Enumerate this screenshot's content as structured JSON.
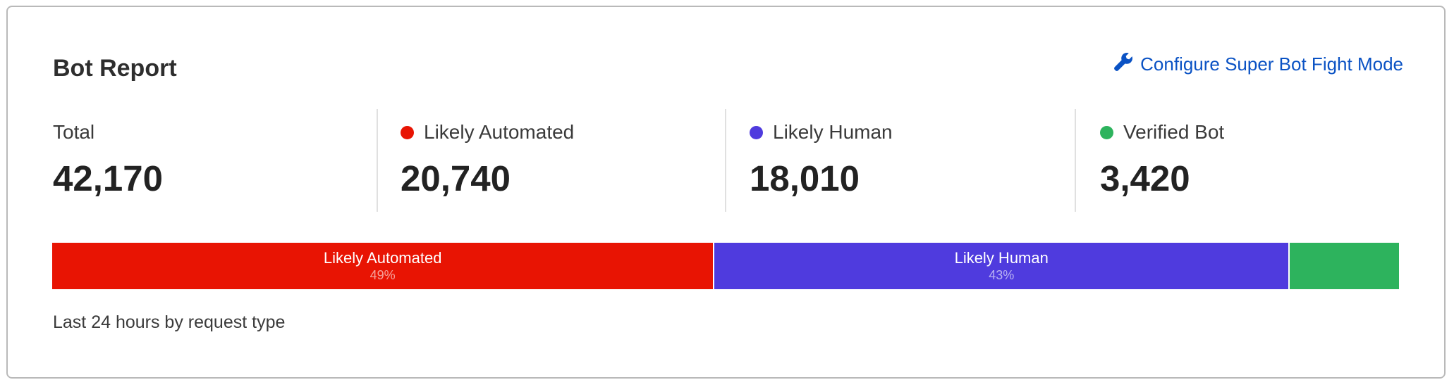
{
  "title": "Bot Report",
  "configure_link": {
    "label": "Configure Super Bot Fight Mode",
    "icon": "wrench-icon",
    "color": "#0a52c4"
  },
  "stats": [
    {
      "label": "Total",
      "value": "42,170"
    },
    {
      "label": "Likely Automated",
      "value": "20,740",
      "color": "#e81403"
    },
    {
      "label": "Likely Human",
      "value": "18,010",
      "color": "#4f3bde"
    },
    {
      "label": "Verified Bot",
      "value": "3,420",
      "color": "#2db35d"
    }
  ],
  "chart_data": {
    "type": "bar",
    "orientation": "horizontal-stacked",
    "categories": [
      "Likely Automated",
      "Likely Human",
      "Verified Bot"
    ],
    "values": [
      20740,
      18010,
      3420
    ],
    "segment_labels": [
      "Likely Automated",
      "Likely Human",
      ""
    ],
    "percent_labels": [
      "49%",
      "43%",
      ""
    ],
    "colors": [
      "#e81403",
      "#4f3bde",
      "#2db35d"
    ]
  },
  "footer": "Last 24 hours by request type"
}
